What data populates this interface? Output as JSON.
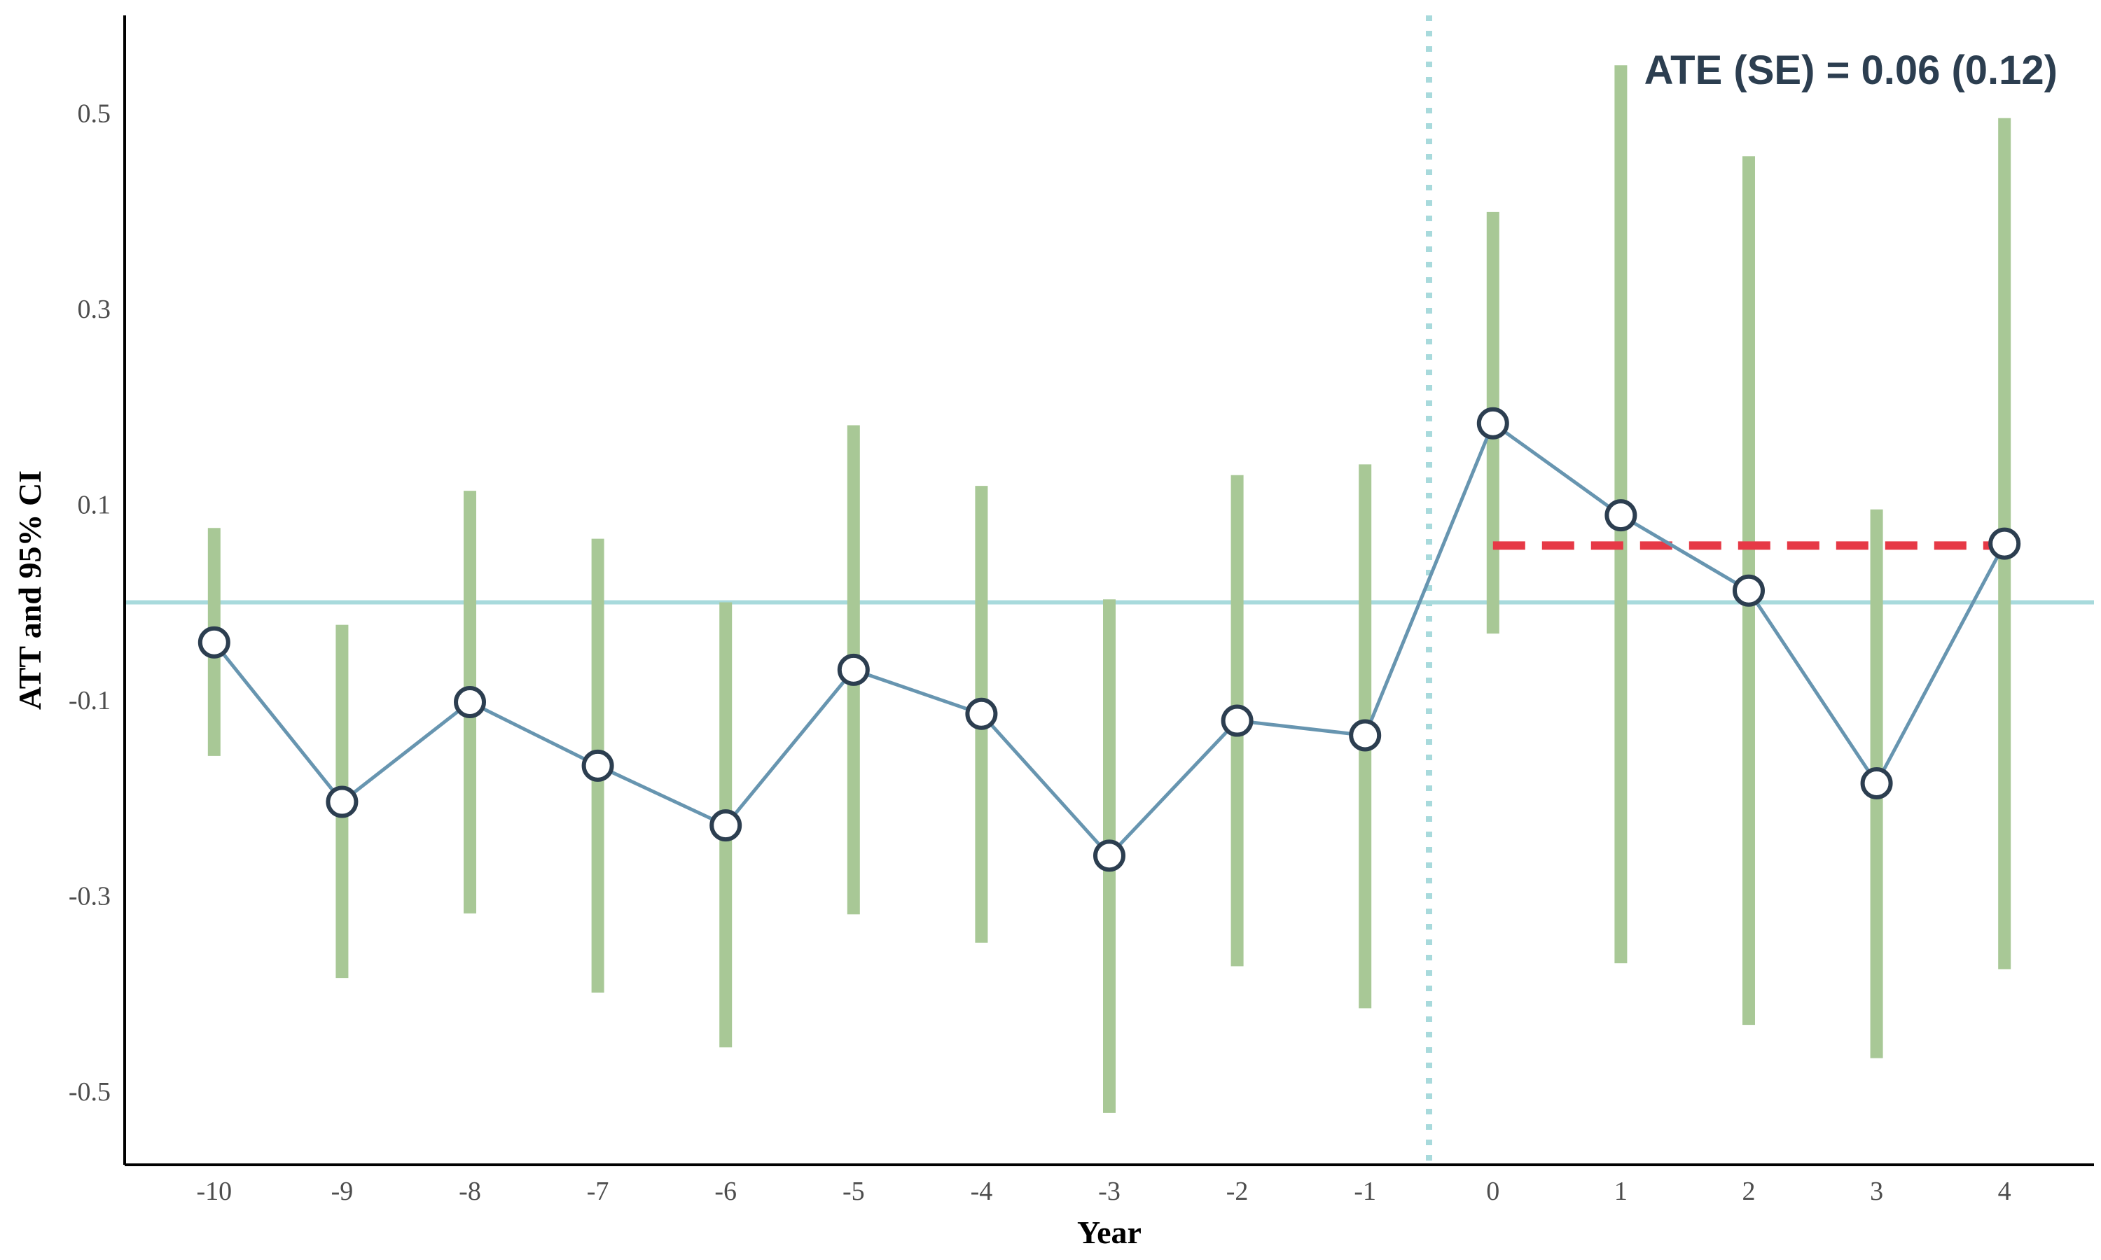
{
  "chart_data": {
    "type": "line",
    "title": "",
    "xlabel": "Year",
    "ylabel": "ATT and 95% CI",
    "x": [
      -10,
      -9,
      -8,
      -7,
      -6,
      -5,
      -4,
      -3,
      -2,
      -1,
      0,
      1,
      2,
      3,
      4
    ],
    "x_tick_labels": [
      "-10",
      "-9",
      "-8",
      "-7",
      "-6",
      "-5",
      "-4",
      "-3",
      "-2",
      "-1",
      "0",
      "1",
      "2",
      "3",
      "4"
    ],
    "y_ticks": [
      0.5,
      0.3,
      0.1,
      -0.1,
      -0.3,
      -0.5
    ],
    "y_tick_labels": [
      "0.5",
      "0.3",
      "0.1",
      "-0.1",
      "-0.3",
      "-0.5"
    ],
    "xlim": [
      -10.7,
      4.7
    ],
    "ylim": [
      -0.575,
      0.6
    ],
    "series": [
      {
        "estimate": [
          -0.041,
          -0.204,
          -0.102,
          -0.167,
          -0.228,
          -0.069,
          -0.114,
          -0.259,
          -0.121,
          -0.136,
          0.183,
          0.089,
          0.012,
          -0.185,
          0.06
        ],
        "ci_lower": [
          -0.157,
          -0.384,
          -0.318,
          -0.399,
          -0.455,
          -0.319,
          -0.348,
          -0.522,
          -0.372,
          -0.415,
          -0.032,
          -0.369,
          -0.432,
          -0.466,
          -0.375
        ],
        "ci_upper": [
          0.076,
          -0.023,
          0.114,
          0.065,
          0.0,
          0.181,
          0.119,
          0.003,
          0.13,
          0.141,
          0.399,
          0.549,
          0.456,
          0.095,
          0.495
        ]
      }
    ],
    "reference_lines": {
      "zero_line_y": 0,
      "treatment_cutoff_x": -0.5,
      "ate_segment": {
        "x_start": 0,
        "x_end": 4,
        "y": 0.058
      }
    },
    "annotation": "ATE (SE) = 0.06 (0.12)",
    "grid": false,
    "legend": "none",
    "colors": {
      "ci_bar": "#a8c896",
      "line": "#6795b0",
      "point_fill": "#ffffff",
      "point_stroke": "#2c3e50",
      "zero_line": "#a8dadc",
      "cutoff_line": "#a8dadc",
      "ate_line": "#e63946",
      "annotation_text": "#2c3e50",
      "axis": "#000000"
    }
  }
}
